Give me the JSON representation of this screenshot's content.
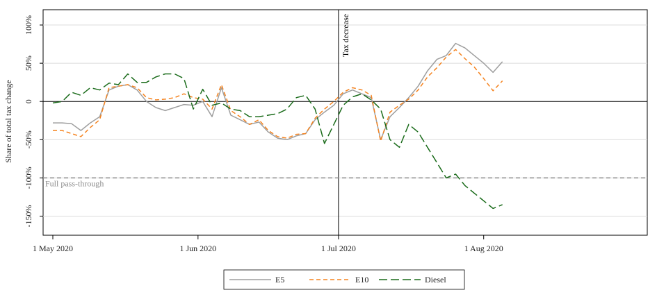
{
  "chart_data": {
    "type": "line",
    "title": "",
    "xlabel": "",
    "ylabel": "Share of total tax change",
    "x_range": [
      "2020-05-01",
      "2020-09-03"
    ],
    "ylim": [
      -175,
      120
    ],
    "y_ticks": [
      {
        "value": 100,
        "label": "100%"
      },
      {
        "value": 50,
        "label": "50%"
      },
      {
        "value": 0,
        "label": "0"
      },
      {
        "value": -50,
        "label": "-50%"
      },
      {
        "value": -100,
        "label": "-100%"
      },
      {
        "value": -150,
        "label": "-150%"
      }
    ],
    "x_ticks": [
      {
        "date": "2020-05-01",
        "label": "1 May 2020"
      },
      {
        "date": "2020-06-01",
        "label": "1 Jun 2020"
      },
      {
        "date": "2020-07-01",
        "label": "1 Jul 2020"
      },
      {
        "date": "2020-08-01",
        "label": "1 Aug 2020"
      }
    ],
    "grid": true,
    "legend_position": "bottom",
    "reference_lines": [
      {
        "orientation": "vertical",
        "date": "2020-07-01",
        "label": "Tax decrease",
        "color": "#000000"
      },
      {
        "orientation": "horizontal",
        "value": 0,
        "label": "",
        "color": "#000000"
      },
      {
        "orientation": "horizontal",
        "value": -100,
        "label": "Full pass-through",
        "color": "#8c8c8c"
      }
    ],
    "series": [
      {
        "name": "E5",
        "color": "#9e9e9e",
        "dash": "solid",
        "points": [
          [
            "2020-05-01",
            -28
          ],
          [
            "2020-05-03",
            -28
          ],
          [
            "2020-05-05",
            -29
          ],
          [
            "2020-05-07",
            -38
          ],
          [
            "2020-05-09",
            -28
          ],
          [
            "2020-05-11",
            -20
          ],
          [
            "2020-05-13",
            15
          ],
          [
            "2020-05-15",
            20
          ],
          [
            "2020-05-17",
            22
          ],
          [
            "2020-05-19",
            15
          ],
          [
            "2020-05-21",
            0
          ],
          [
            "2020-05-23",
            -8
          ],
          [
            "2020-05-25",
            -12
          ],
          [
            "2020-05-27",
            -8
          ],
          [
            "2020-05-29",
            -4
          ],
          [
            "2020-05-31",
            -5
          ],
          [
            "2020-06-02",
            0
          ],
          [
            "2020-06-04",
            -20
          ],
          [
            "2020-06-06",
            18
          ],
          [
            "2020-06-08",
            -18
          ],
          [
            "2020-06-10",
            -24
          ],
          [
            "2020-06-12",
            -30
          ],
          [
            "2020-06-14",
            -27
          ],
          [
            "2020-06-16",
            -40
          ],
          [
            "2020-06-18",
            -48
          ],
          [
            "2020-06-20",
            -50
          ],
          [
            "2020-06-22",
            -45
          ],
          [
            "2020-06-24",
            -42
          ],
          [
            "2020-06-26",
            -24
          ],
          [
            "2020-06-28",
            -14
          ],
          [
            "2020-06-30",
            -5
          ],
          [
            "2020-07-02",
            10
          ],
          [
            "2020-07-04",
            15
          ],
          [
            "2020-07-06",
            10
          ],
          [
            "2020-07-08",
            5
          ],
          [
            "2020-07-10",
            -50
          ],
          [
            "2020-07-12",
            -20
          ],
          [
            "2020-07-14",
            -8
          ],
          [
            "2020-07-16",
            5
          ],
          [
            "2020-07-18",
            20
          ],
          [
            "2020-07-20",
            40
          ],
          [
            "2020-07-22",
            55
          ],
          [
            "2020-07-24",
            60
          ],
          [
            "2020-07-26",
            76
          ],
          [
            "2020-07-28",
            70
          ],
          [
            "2020-07-30",
            60
          ],
          [
            "2020-08-01",
            50
          ],
          [
            "2020-08-03",
            38
          ],
          [
            "2020-08-05",
            52
          ]
        ]
      },
      {
        "name": "E10",
        "color": "#f5831f",
        "dash": "short",
        "points": [
          [
            "2020-05-01",
            -38
          ],
          [
            "2020-05-03",
            -38
          ],
          [
            "2020-05-05",
            -42
          ],
          [
            "2020-05-07",
            -46
          ],
          [
            "2020-05-09",
            -34
          ],
          [
            "2020-05-11",
            -24
          ],
          [
            "2020-05-13",
            18
          ],
          [
            "2020-05-15",
            20
          ],
          [
            "2020-05-17",
            22
          ],
          [
            "2020-05-19",
            18
          ],
          [
            "2020-05-21",
            5
          ],
          [
            "2020-05-23",
            2
          ],
          [
            "2020-05-25",
            3
          ],
          [
            "2020-05-27",
            5
          ],
          [
            "2020-05-29",
            10
          ],
          [
            "2020-05-31",
            5
          ],
          [
            "2020-06-02",
            3
          ],
          [
            "2020-06-04",
            -10
          ],
          [
            "2020-06-06",
            22
          ],
          [
            "2020-06-08",
            -12
          ],
          [
            "2020-06-10",
            -20
          ],
          [
            "2020-06-12",
            -30
          ],
          [
            "2020-06-14",
            -24
          ],
          [
            "2020-06-16",
            -38
          ],
          [
            "2020-06-18",
            -46
          ],
          [
            "2020-06-20",
            -48
          ],
          [
            "2020-06-22",
            -43
          ],
          [
            "2020-06-24",
            -42
          ],
          [
            "2020-06-26",
            -22
          ],
          [
            "2020-06-28",
            -10
          ],
          [
            "2020-06-30",
            0
          ],
          [
            "2020-07-02",
            12
          ],
          [
            "2020-07-04",
            18
          ],
          [
            "2020-07-06",
            15
          ],
          [
            "2020-07-08",
            8
          ],
          [
            "2020-07-10",
            -52
          ],
          [
            "2020-07-12",
            -14
          ],
          [
            "2020-07-14",
            -5
          ],
          [
            "2020-07-16",
            3
          ],
          [
            "2020-07-18",
            15
          ],
          [
            "2020-07-20",
            32
          ],
          [
            "2020-07-22",
            44
          ],
          [
            "2020-07-24",
            58
          ],
          [
            "2020-07-26",
            68
          ],
          [
            "2020-07-28",
            56
          ],
          [
            "2020-07-30",
            45
          ],
          [
            "2020-08-01",
            30
          ],
          [
            "2020-08-03",
            14
          ],
          [
            "2020-08-05",
            27
          ]
        ]
      },
      {
        "name": "Diesel",
        "color": "#1a6b1a",
        "dash": "long",
        "points": [
          [
            "2020-05-01",
            -2
          ],
          [
            "2020-05-03",
            0
          ],
          [
            "2020-05-05",
            12
          ],
          [
            "2020-05-07",
            8
          ],
          [
            "2020-05-09",
            18
          ],
          [
            "2020-05-11",
            15
          ],
          [
            "2020-05-13",
            24
          ],
          [
            "2020-05-15",
            22
          ],
          [
            "2020-05-17",
            36
          ],
          [
            "2020-05-19",
            25
          ],
          [
            "2020-05-21",
            25
          ],
          [
            "2020-05-23",
            32
          ],
          [
            "2020-05-25",
            36
          ],
          [
            "2020-05-27",
            36
          ],
          [
            "2020-05-29",
            30
          ],
          [
            "2020-05-31",
            -10
          ],
          [
            "2020-06-02",
            16
          ],
          [
            "2020-06-04",
            -5
          ],
          [
            "2020-06-06",
            -2
          ],
          [
            "2020-06-08",
            -10
          ],
          [
            "2020-06-10",
            -12
          ],
          [
            "2020-06-12",
            -20
          ],
          [
            "2020-06-14",
            -20
          ],
          [
            "2020-06-16",
            -18
          ],
          [
            "2020-06-18",
            -16
          ],
          [
            "2020-06-20",
            -10
          ],
          [
            "2020-06-22",
            5
          ],
          [
            "2020-06-24",
            8
          ],
          [
            "2020-06-26",
            -10
          ],
          [
            "2020-06-28",
            -55
          ],
          [
            "2020-06-30",
            -30
          ],
          [
            "2020-07-02",
            -5
          ],
          [
            "2020-07-04",
            6
          ],
          [
            "2020-07-06",
            10
          ],
          [
            "2020-07-08",
            2
          ],
          [
            "2020-07-10",
            -10
          ],
          [
            "2020-07-12",
            -50
          ],
          [
            "2020-07-14",
            -60
          ],
          [
            "2020-07-16",
            -30
          ],
          [
            "2020-07-18",
            -40
          ],
          [
            "2020-07-20",
            -60
          ],
          [
            "2020-07-22",
            -80
          ],
          [
            "2020-07-24",
            -100
          ],
          [
            "2020-07-26",
            -95
          ],
          [
            "2020-07-28",
            -110
          ],
          [
            "2020-07-30",
            -120
          ],
          [
            "2020-08-01",
            -130
          ],
          [
            "2020-08-03",
            -140
          ],
          [
            "2020-08-05",
            -135
          ]
        ]
      }
    ]
  }
}
